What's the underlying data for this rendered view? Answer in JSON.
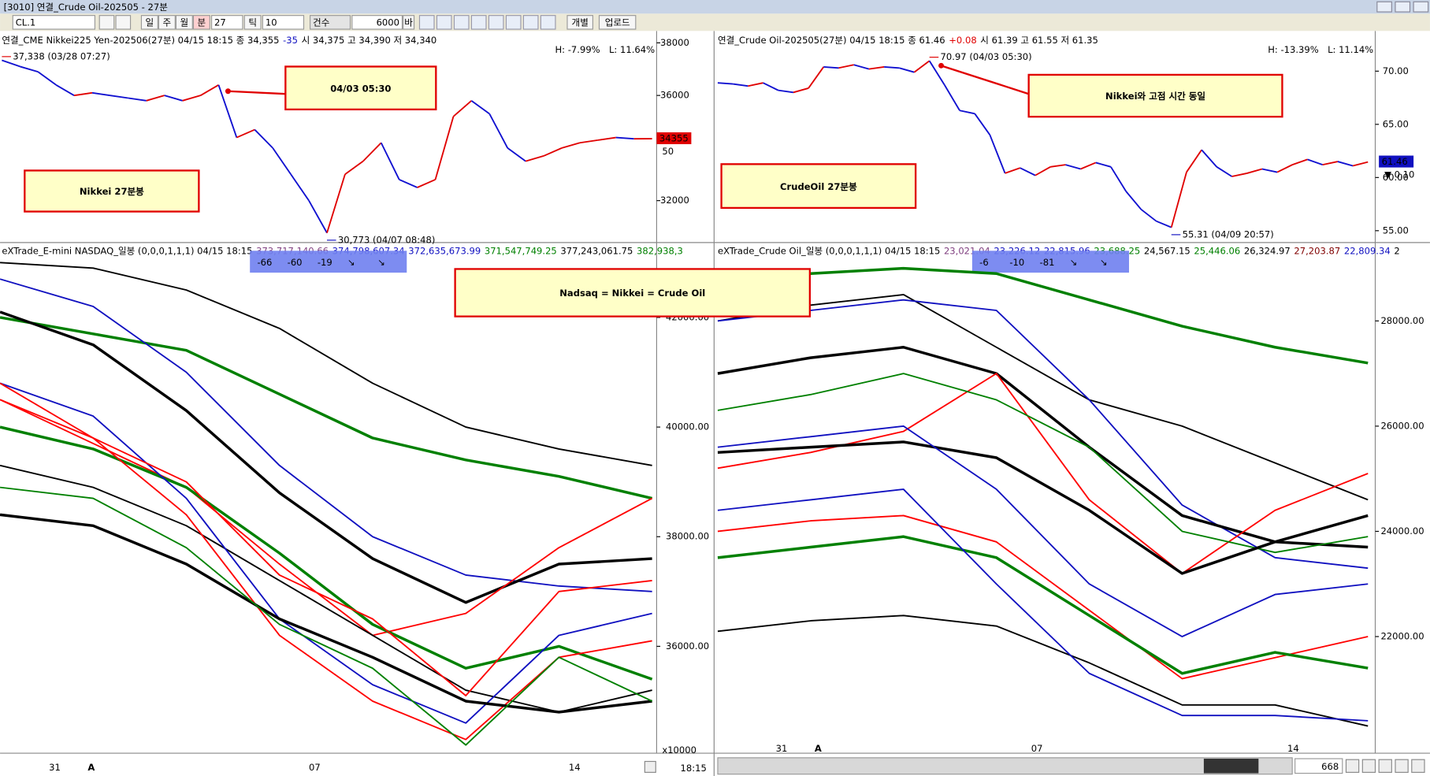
{
  "window": {
    "title": "[3010] 연결_Crude Oil-202505 - 27분"
  },
  "toolbar": {
    "symbol": "CL.1",
    "periods": [
      "일",
      "주",
      "월",
      "분"
    ],
    "interval": "27",
    "tick_label": "틱",
    "tick": "10",
    "count_label": "건수",
    "count": "6000",
    "count_unit": "바",
    "buttons": [
      "개별",
      "업로드"
    ]
  },
  "annotations": [
    "04/03 05:30",
    "Nikkei 27분봉",
    "CrudeOil 27분봉",
    "Nikkei와 고점 시간 동일",
    "Nadsaq = Nikkei = Crude Oil"
  ],
  "panels": [
    {
      "header": [
        "연결_CME Nikkei225 Yen-202506(27분) 04/15 18:15  종 34,355",
        "-35",
        "시 34,375 고 34,390 저 34,340"
      ],
      "high": "H: -7.99%",
      "low": "L: 11.64%",
      "ylim": [
        30440,
        38416
      ],
      "yticks": [
        32000,
        36000,
        38000
      ],
      "max_label": "37,338 (03/28 07:27)",
      "min_label": "30,773 (04/07 08:48)",
      "last": 34355,
      "spread": "50",
      "series": {
        "values": [
          37338,
          37100,
          36900,
          36400,
          36000,
          36100,
          36000,
          35900,
          35800,
          36000,
          35800,
          36000,
          36400,
          34400,
          34700,
          34000,
          33000,
          32000,
          30773,
          33000,
          33500,
          34200,
          32800,
          32500,
          32800,
          35200,
          35800,
          35300,
          34000,
          33500,
          33700,
          34000,
          34200,
          34300,
          34400,
          34350,
          34355
        ]
      }
    },
    {
      "header": [
        "연결_Crude Oil-202505(27분) 04/15 18:15  종 61.46",
        "+0.08",
        "시 61.39 고 61.55 저 61.35"
      ],
      "high": "H: -13.39%",
      "low": "L: 11.14%",
      "ylim": [
        53.97,
        73.69
      ],
      "yticks": [
        {
          "value": 55,
          "label": "55.00"
        },
        {
          "value": 60,
          "label": "60.00"
        },
        {
          "value": 65,
          "label": "65.00"
        },
        {
          "value": 70,
          "label": "70.00"
        }
      ],
      "max_label": "70.97 (04/03 05:30)",
      "min_label": "55.31 (04/09 20:57)",
      "last": 61.46,
      "spread": "▼ 0.10",
      "series": {
        "values": [
          68.9,
          68.8,
          68.6,
          68.9,
          68.2,
          68.0,
          68.4,
          70.4,
          70.3,
          70.6,
          70.2,
          70.4,
          70.3,
          69.9,
          70.97,
          68.7,
          66.3,
          66.0,
          64.0,
          60.4,
          60.9,
          60.2,
          61.0,
          61.2,
          60.8,
          61.4,
          61.0,
          58.7,
          57.0,
          55.9,
          55.31,
          60.5,
          62.6,
          61.0,
          60.1,
          60.4,
          60.8,
          60.5,
          61.2,
          61.7,
          61.2,
          61.5,
          61.1,
          61.46
        ]
      }
    },
    {
      "header": "eXTrade_E-mini NASDAQ_일봉  (0,0,0,1,1,1) 04/15 18:15",
      "header_values": [
        "373,717,140.66",
        "374,798,607.34",
        "372,635,673.99",
        "371,547,749.25",
        "377,243,061.75",
        "382,938,3"
      ],
      "badge": [
        -66,
        -60,
        -19,
        "↘",
        "↘"
      ],
      "unit": "x10000",
      "ylim": [
        34150,
        43133
      ],
      "yticks": [
        {
          "value": 36000,
          "label": "36000.00"
        },
        {
          "value": 38000,
          "label": "38000.00"
        },
        {
          "value": 40000,
          "label": "40000.00"
        },
        {
          "value": 42000,
          "label": "42000.00"
        }
      ],
      "lines": [
        {
          "color": "#008000",
          "values": [
            42000,
            41700,
            41400,
            40600,
            39800,
            39400,
            39100,
            38700
          ]
        },
        {
          "color": "#000000",
          "values": [
            43000,
            42900,
            42500,
            41800,
            40800,
            40000,
            39600,
            39300
          ]
        },
        {
          "color": "#1010c0",
          "values": [
            42700,
            42200,
            41000,
            39300,
            38000,
            37300,
            37100,
            37000
          ]
        },
        {
          "color": "#000000",
          "values": [
            42100,
            41500,
            40300,
            38800,
            37600,
            36800,
            37500,
            37600
          ]
        },
        {
          "color": "#ff0000",
          "values": [
            40500,
            39700,
            38900,
            37500,
            36200,
            36600,
            37800,
            38700
          ]
        },
        {
          "color": "#000000",
          "values": [
            39300,
            38900,
            38200,
            37200,
            36200,
            35200,
            34800,
            35200
          ]
        },
        {
          "color": "#008000",
          "values": [
            40000,
            39600,
            38900,
            37700,
            36400,
            35600,
            36000,
            35400
          ]
        },
        {
          "color": "#1010c0",
          "values": [
            40800,
            40200,
            38700,
            36500,
            35300,
            34600,
            36200,
            36600
          ]
        },
        {
          "color": "#ff0000",
          "values": [
            40800,
            39800,
            38400,
            36200,
            35000,
            34300,
            35800,
            36100
          ]
        },
        {
          "color": "#000000",
          "values": [
            38400,
            38200,
            37500,
            36500,
            35800,
            35000,
            34800,
            35000
          ]
        },
        {
          "color": "#008000",
          "values": [
            38900,
            38700,
            37800,
            36400,
            35600,
            34200,
            35800,
            35000
          ]
        },
        {
          "color": "#ff0000",
          "values": [
            40500,
            39800,
            39000,
            37300,
            36500,
            35100,
            37000,
            37200
          ]
        }
      ]
    },
    {
      "header": "eXTrade_Crude Oil_일봉  (0,0,0,1,1,1) 04/15 18:15",
      "header_values": [
        "23,021.04",
        "23,226.12",
        "22,815.96",
        "23,688.25",
        "24,567.15",
        "25,446.06",
        "26,324.97",
        "27,203.87",
        "22,809.34",
        "2"
      ],
      "badge": [
        -6,
        -10,
        -81,
        "↘",
        "↘"
      ],
      "ylim": [
        19887,
        29247
      ],
      "yticks": [
        {
          "value": 22000,
          "label": "22000.00"
        },
        {
          "value": 24000,
          "label": "24000.00"
        },
        {
          "value": 26000,
          "label": "26000.00"
        },
        {
          "value": 28000,
          "label": "28000.00"
        }
      ],
      "lines": [
        {
          "color": "#008000",
          "values": [
            28800,
            28900,
            29000,
            28900,
            28400,
            27900,
            27500,
            27200
          ]
        },
        {
          "color": "#000000",
          "values": [
            28000,
            28300,
            28500,
            27500,
            26500,
            26000,
            25300,
            24600
          ]
        },
        {
          "color": "#1010c0",
          "values": [
            28000,
            28200,
            28400,
            28200,
            26500,
            24500,
            23500,
            23300
          ]
        },
        {
          "color": "#000000",
          "values": [
            27000,
            27300,
            27500,
            27000,
            25600,
            24300,
            23800,
            23700
          ]
        },
        {
          "color": "#ff0000",
          "values": [
            25200,
            25500,
            25900,
            27000,
            24600,
            23200,
            24400,
            25100
          ]
        },
        {
          "color": "#008000",
          "values": [
            26300,
            26600,
            27000,
            26500,
            25600,
            24000,
            23600,
            23900
          ]
        },
        {
          "color": "#000000",
          "values": [
            25500,
            25600,
            25700,
            25400,
            24400,
            23200,
            23800,
            24300
          ]
        },
        {
          "color": "#1010c0",
          "values": [
            25600,
            25800,
            26000,
            24800,
            23000,
            22000,
            22800,
            23000
          ]
        },
        {
          "color": "#ff0000",
          "values": [
            24000,
            24200,
            24300,
            23800,
            22500,
            21200,
            21600,
            22000
          ]
        },
        {
          "color": "#008000",
          "values": [
            23500,
            23700,
            23900,
            23500,
            22400,
            21300,
            21700,
            21400
          ]
        },
        {
          "color": "#000000",
          "values": [
            22100,
            22300,
            22400,
            22200,
            21500,
            20700,
            20700,
            20300
          ]
        },
        {
          "color": "#1010c0",
          "values": [
            24400,
            24600,
            24800,
            23000,
            21300,
            20500,
            20500,
            20400
          ]
        }
      ]
    }
  ],
  "date_axis": {
    "left": [
      "31",
      "A",
      "07",
      "14"
    ],
    "right": [
      "31",
      "A",
      "07",
      "14"
    ],
    "time": "18:15",
    "bars": "668"
  }
}
